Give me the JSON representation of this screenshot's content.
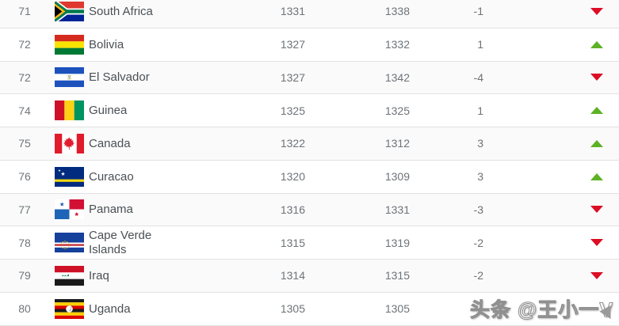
{
  "colors": {
    "trend_up": "#5cb224",
    "trend_down": "#dc0d25",
    "row_alt_bg": "#fafafa",
    "separator": "#e2e2e2"
  },
  "watermark": {
    "text": "头条 @王小一"
  },
  "ranking_table": {
    "rows": [
      {
        "rank": "71",
        "country": "South Africa",
        "flag": "south-africa",
        "points": "1331",
        "prev_points": "1338",
        "change": "-1",
        "trend": "down"
      },
      {
        "rank": "72",
        "country": "Bolivia",
        "flag": "bolivia",
        "points": "1327",
        "prev_points": "1332",
        "change": "1",
        "trend": "up"
      },
      {
        "rank": "72",
        "country": "El Salvador",
        "flag": "el-salvador",
        "points": "1327",
        "prev_points": "1342",
        "change": "-4",
        "trend": "down"
      },
      {
        "rank": "74",
        "country": "Guinea",
        "flag": "guinea",
        "points": "1325",
        "prev_points": "1325",
        "change": "1",
        "trend": "up"
      },
      {
        "rank": "75",
        "country": "Canada",
        "flag": "canada",
        "points": "1322",
        "prev_points": "1312",
        "change": "3",
        "trend": "up"
      },
      {
        "rank": "76",
        "country": "Curacao",
        "flag": "curacao",
        "points": "1320",
        "prev_points": "1309",
        "change": "3",
        "trend": "up"
      },
      {
        "rank": "77",
        "country": "Panama",
        "flag": "panama",
        "points": "1316",
        "prev_points": "1331",
        "change": "-3",
        "trend": "down"
      },
      {
        "rank": "78",
        "country": "Cape Verde Islands",
        "flag": "cape-verde",
        "points": "1315",
        "prev_points": "1319",
        "change": "-2",
        "trend": "down"
      },
      {
        "rank": "79",
        "country": "Iraq",
        "flag": "iraq",
        "points": "1314",
        "prev_points": "1315",
        "change": "-2",
        "trend": "down"
      },
      {
        "rank": "80",
        "country": "Uganda",
        "flag": "uganda",
        "points": "1305",
        "prev_points": "1305",
        "change": "",
        "trend": "none"
      }
    ]
  }
}
